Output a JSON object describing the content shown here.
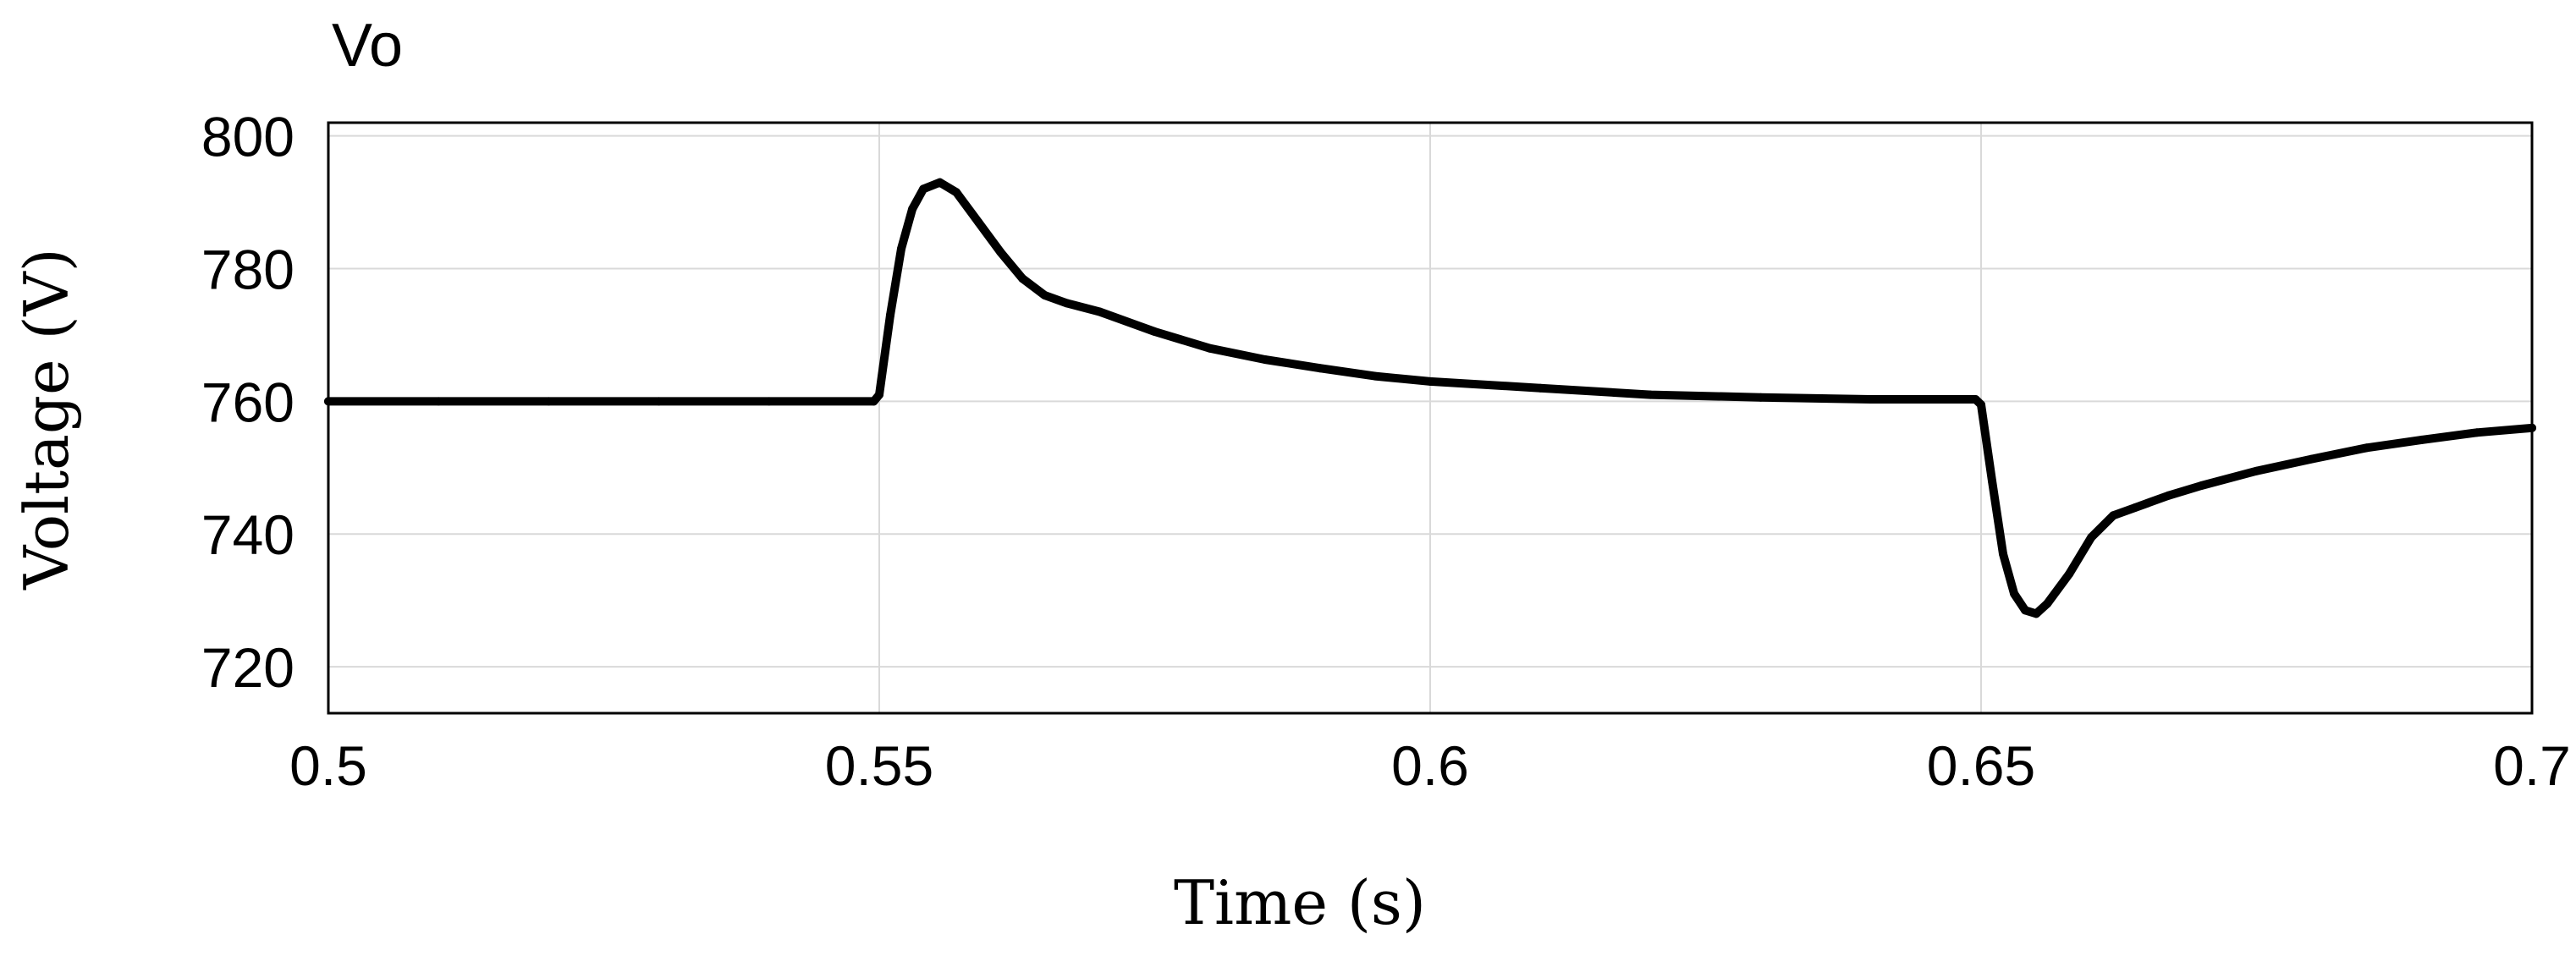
{
  "chart_data": {
    "type": "line",
    "title": "Vo",
    "xlabel": "Time (s)",
    "ylabel": "Voltage (V)",
    "xlim": [
      0.5,
      0.7
    ],
    "ylim": [
      713,
      802
    ],
    "x_ticks": [
      "0.5",
      "0.55",
      "0.6",
      "0.65",
      "0.7"
    ],
    "x_tick_values": [
      0.5,
      0.55,
      0.6,
      0.65,
      0.7
    ],
    "y_ticks": [
      "720",
      "740",
      "760",
      "780",
      "800"
    ],
    "y_tick_values": [
      720,
      740,
      760,
      780,
      800
    ],
    "grid": true,
    "legend": "none",
    "line_color": "#000000",
    "grid_color": "#d9d9d9",
    "series": [
      {
        "x": [
          0.5,
          0.51,
          0.52,
          0.53,
          0.54,
          0.5495,
          0.55,
          0.551,
          0.552,
          0.553,
          0.554,
          0.5555,
          0.557,
          0.559,
          0.561,
          0.563,
          0.565,
          0.567,
          0.57,
          0.575,
          0.58,
          0.585,
          0.59,
          0.595,
          0.6,
          0.61,
          0.62,
          0.63,
          0.64,
          0.6495,
          0.65,
          0.651,
          0.652,
          0.653,
          0.654,
          0.655,
          0.656,
          0.658,
          0.66,
          0.662,
          0.664,
          0.667,
          0.67,
          0.675,
          0.68,
          0.685,
          0.69,
          0.695,
          0.7
        ],
        "y": [
          760,
          760,
          760,
          760,
          760,
          760,
          761,
          773,
          783,
          789,
          792,
          793,
          791.5,
          787,
          782.5,
          778.5,
          776,
          774.8,
          773.5,
          770.5,
          768,
          766.3,
          765,
          763.8,
          763,
          762,
          761,
          760.6,
          760.3,
          760.3,
          759.5,
          748,
          737,
          731,
          728.5,
          728,
          729.5,
          734,
          739.5,
          742.8,
          744,
          745.8,
          747.3,
          749.5,
          751.3,
          753,
          754.2,
          755.3,
          756
        ]
      }
    ]
  }
}
